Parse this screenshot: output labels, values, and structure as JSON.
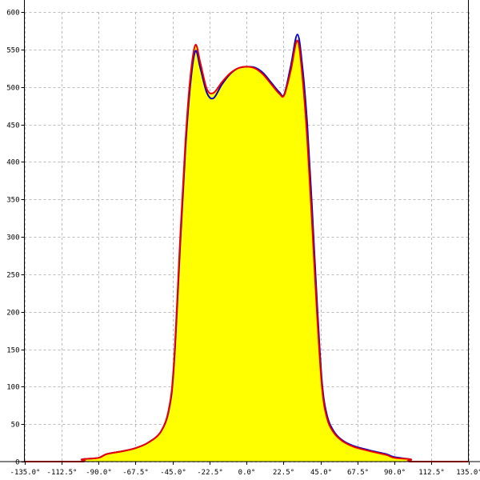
{
  "chart_data": {
    "type": "area",
    "title": "",
    "xlabel": "",
    "ylabel": "",
    "xlim": [
      -135,
      135
    ],
    "ylim": [
      0,
      600
    ],
    "grid": true,
    "x_ticks": [
      -135,
      -112.5,
      -90,
      -67.5,
      -45,
      -22.5,
      0,
      22.5,
      45,
      67.5,
      90,
      112.5,
      135
    ],
    "x_tick_labels": [
      "-135.0°",
      "-112.5°",
      "-90.0°",
      "-67.5°",
      "-45.0°",
      "-22.5°",
      "0.0°",
      "22.5°",
      "45.0°",
      "67.5°",
      "90.0°",
      "112.5°",
      "135.0°"
    ],
    "y_ticks": [
      0,
      50,
      100,
      150,
      200,
      250,
      300,
      350,
      400,
      450,
      500,
      550,
      600
    ],
    "y_tick_labels": [
      "0",
      "50",
      "100",
      "150",
      "200",
      "250",
      "300",
      "350",
      "400",
      "450",
      "500",
      "550",
      "600"
    ],
    "fill_color": "#ffff00",
    "series": [
      {
        "color": "#0000cc",
        "x": [
          -135,
          -100.5,
          -100,
          -90,
          -85,
          -75,
          -67.5,
          -60,
          -52,
          -47,
          -44,
          -40,
          -37,
          -34,
          -31,
          -28,
          -24,
          -20,
          -15,
          -10,
          -5,
          0,
          5,
          10,
          15,
          20,
          23,
          27,
          31,
          34,
          37,
          40,
          43,
          46,
          49,
          53,
          58,
          65,
          75,
          85,
          90,
          100,
          100.5,
          135
        ],
        "y": [
          0,
          0,
          3,
          5,
          10,
          14,
          18,
          25,
          40,
          70,
          130,
          300,
          420,
          505,
          548,
          525,
          492,
          485,
          503,
          517,
          525,
          527,
          526,
          519,
          506,
          493,
          490,
          528,
          570,
          528,
          450,
          335,
          210,
          105,
          62,
          41,
          29,
          21,
          15,
          10,
          6,
          3,
          0,
          0
        ]
      },
      {
        "color": "#ee0000",
        "x": [
          -135,
          -100.5,
          -100,
          -90,
          -85,
          -75,
          -67.5,
          -60,
          -52,
          -47,
          -44,
          -40,
          -37,
          -34,
          -31,
          -28,
          -24,
          -20,
          -15,
          -10,
          -5,
          0,
          5,
          10,
          15,
          20,
          23,
          27,
          31,
          34,
          37,
          40,
          43,
          46,
          49,
          53,
          58,
          65,
          75,
          85,
          90,
          100,
          100.5,
          135
        ],
        "y": [
          0,
          0,
          3,
          5,
          10,
          14,
          18,
          25,
          40,
          72,
          135,
          310,
          430,
          515,
          556,
          532,
          497,
          492,
          506,
          518,
          525,
          527,
          525,
          517,
          504,
          491,
          489,
          522,
          562,
          515,
          430,
          315,
          195,
          98,
          58,
          39,
          28,
          20,
          14,
          9,
          5,
          3,
          0,
          0
        ]
      }
    ]
  }
}
